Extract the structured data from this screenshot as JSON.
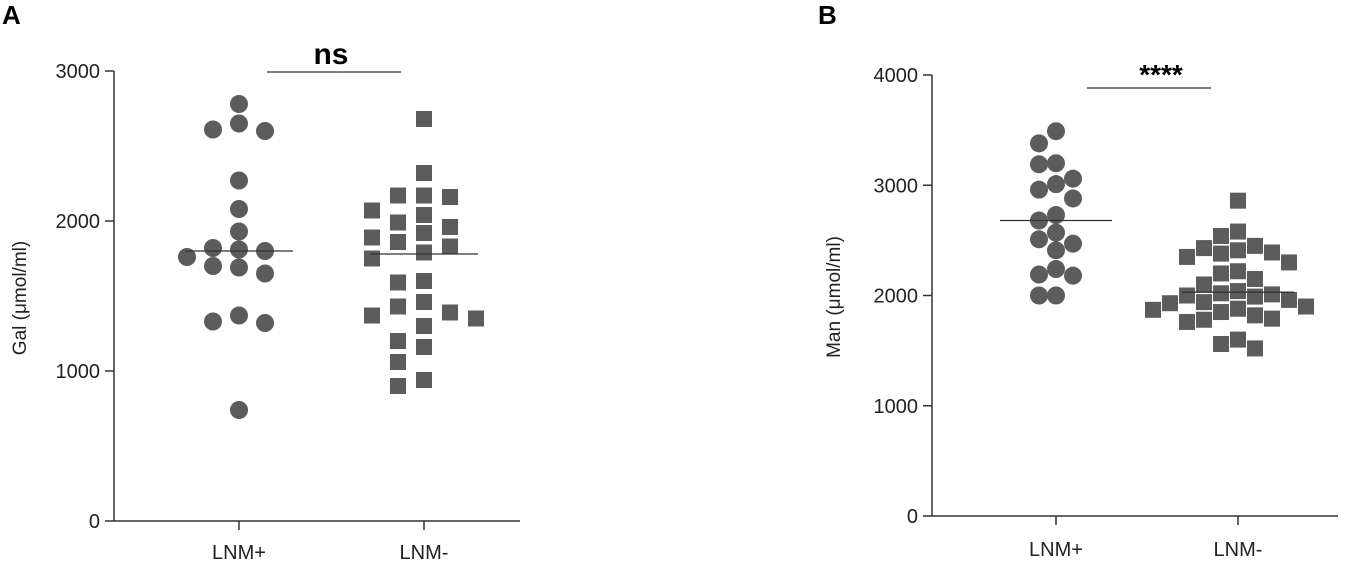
{
  "chart_data": [
    {
      "panel": "A",
      "type": "scatter",
      "ylabel": "Gal (μmol/ml)",
      "ylim": [
        0,
        3000
      ],
      "yticks": [
        0,
        1000,
        2000,
        3000
      ],
      "categories": [
        "LNM+",
        "LNM-"
      ],
      "significance": "ns",
      "series": [
        {
          "category": "LNM+",
          "marker": "circle",
          "color": "#5c5c5c",
          "mean": 1800,
          "values": [
            2780,
            2650,
            2610,
            2600,
            2270,
            2080,
            1930,
            1820,
            1810,
            1800,
            1760,
            1700,
            1690,
            1650,
            1370,
            1330,
            1320,
            740
          ]
        },
        {
          "category": "LNM-",
          "marker": "square",
          "color": "#5c5c5c",
          "mean": 1780,
          "values": [
            2680,
            2320,
            2170,
            2170,
            2160,
            2070,
            2040,
            1990,
            1960,
            1920,
            1890,
            1860,
            1830,
            1790,
            1750,
            1600,
            1590,
            1460,
            1430,
            1390,
            1370,
            1350,
            1300,
            1200,
            1160,
            1060,
            940,
            900
          ]
        }
      ]
    },
    {
      "panel": "B",
      "type": "scatter",
      "ylabel": "Man (μmol/ml)",
      "ylim": [
        0,
        4000
      ],
      "yticks": [
        0,
        1000,
        2000,
        3000,
        4000
      ],
      "categories": [
        "LNM+",
        "LNM-"
      ],
      "significance": "****",
      "series": [
        {
          "category": "LNM+",
          "marker": "circle",
          "color": "#5c5c5c",
          "mean": 2680,
          "values": [
            3490,
            3380,
            3200,
            3190,
            3060,
            3010,
            2960,
            2880,
            2730,
            2680,
            2570,
            2510,
            2470,
            2410,
            2240,
            2190,
            2180,
            2000,
            2000
          ]
        },
        {
          "category": "LNM-",
          "marker": "square",
          "color": "#5c5c5c",
          "mean": 2030,
          "values": [
            2860,
            2580,
            2540,
            2450,
            2430,
            2410,
            2390,
            2380,
            2350,
            2300,
            2220,
            2200,
            2150,
            2100,
            2040,
            2020,
            2010,
            2000,
            1990,
            1960,
            1940,
            1930,
            1900,
            1880,
            1870,
            1850,
            1820,
            1790,
            1780,
            1760,
            1600,
            1560,
            1520
          ]
        }
      ]
    }
  ]
}
